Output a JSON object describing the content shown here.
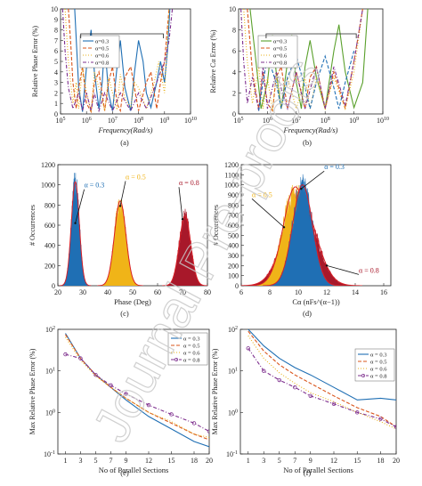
{
  "watermark": "Journal Pre-proofs",
  "colors": {
    "a03": "#1f6fb4",
    "a05": "#d9541a",
    "a06": "#e8b21a",
    "a08": "#7e2f8e",
    "red": "#b21f2d",
    "green": "#5aa02c",
    "hist_blue": "#1f6fb4",
    "hist_yellow": "#f0b418",
    "hist_red": "#a8182a",
    "fit": "#d81f26"
  },
  "chart_data": [
    {
      "id": "a",
      "type": "line",
      "caption": "(a)",
      "xlabel": "Frequency(Rad/s)",
      "ylabel": "Relative Phase Error (%)",
      "xscale": "log",
      "xlim": [
        100000,
        10000000000
      ],
      "ylim": [
        0,
        10
      ],
      "xticks": [
        100000,
        1000000,
        10000000,
        100000000,
        1000000000,
        10000000000
      ],
      "xtick_labels": [
        "10^5",
        "10^6",
        "10^7",
        "10^8",
        "10^9",
        "10^10"
      ],
      "yticks": [
        0,
        1,
        2,
        3,
        4,
        5,
        6,
        7,
        8,
        9,
        10
      ],
      "legend_position": "top-left",
      "series": [
        {
          "name": "α=0.3",
          "color_key": "a03",
          "dash": "solid",
          "x": [
            350000,
            500000,
            700000,
            1000000,
            1500000,
            2000000,
            3000000,
            4000000,
            5000000,
            7000000,
            10000000,
            15000000,
            20000000,
            30000000,
            50000000,
            70000000,
            100000000,
            150000000,
            200000000,
            300000000,
            500000000,
            700000000,
            1000000000,
            1300000000,
            1600000000
          ],
          "y": [
            10,
            2.5,
            0.2,
            4.5,
            8.0,
            4.0,
            0.5,
            3.0,
            6.8,
            2.0,
            0.3,
            4.5,
            7.0,
            2.5,
            0.3,
            4.0,
            7.0,
            5.0,
            2.0,
            0.6,
            3.0,
            5.0,
            3.0,
            6.0,
            10
          ]
        },
        {
          "name": "α=0.5",
          "color_key": "a05",
          "dash": "dashed",
          "x": [
            200000,
            250000,
            300000,
            400000,
            500000,
            700000,
            1000000,
            1500000,
            2000000,
            3000000,
            5000000,
            7000000,
            10000000,
            15000000,
            20000000,
            30000000,
            50000000,
            100000000,
            200000000,
            300000000,
            500000000,
            700000000,
            1000000000,
            1500000000
          ],
          "y": [
            10,
            6.5,
            3.0,
            0.5,
            2.5,
            4.5,
            1.0,
            0.2,
            3.0,
            4.0,
            0.3,
            3.0,
            4.5,
            1.0,
            0.3,
            3.5,
            4.5,
            0.3,
            3.0,
            4.0,
            0.5,
            3.0,
            5.0,
            10
          ]
        },
        {
          "name": "α=0.6",
          "color_key": "a06",
          "dash": "dotted",
          "x": [
            150000,
            200000,
            300000,
            400000,
            500000,
            700000,
            1000000,
            1500000,
            2000000,
            3000000,
            5000000,
            7000000,
            10000000,
            15000000,
            20000000,
            30000000,
            50000000,
            70000000,
            100000000,
            200000000,
            400000000,
            600000000,
            1000000000,
            1500000000
          ],
          "y": [
            10,
            5.0,
            1.0,
            3.0,
            0.5,
            4.5,
            2.0,
            0.2,
            4.0,
            2.5,
            0.3,
            3.5,
            2.0,
            0.4,
            3.8,
            1.5,
            0.6,
            3.0,
            2.5,
            0.5,
            3.0,
            5.0,
            2.0,
            10
          ]
        },
        {
          "name": "α=0.8",
          "color_key": "a08",
          "dash": "dashdot",
          "x": [
            120000,
            150000,
            200000,
            300000,
            500000,
            700000,
            1000000,
            1500000,
            2000000,
            3000000,
            5000000,
            10000000,
            20000000,
            50000000,
            100000000,
            200000000,
            500000000,
            1000000000,
            1500000000,
            2000000000
          ],
          "y": [
            10,
            6.0,
            2.5,
            0.5,
            2.0,
            0.3,
            2.0,
            0.3,
            2.0,
            0.3,
            2.0,
            0.3,
            2.0,
            0.3,
            2.0,
            0.5,
            3.0,
            5.0,
            7.0,
            10
          ]
        }
      ]
    },
    {
      "id": "b",
      "type": "line",
      "caption": "(b)",
      "xlabel": "Frequency(Rad/s)",
      "ylabel": "Relative Cα Error (%)",
      "xscale": "log",
      "xlim": [
        100000,
        10000000000
      ],
      "ylim": [
        0,
        10
      ],
      "xticks": [
        100000,
        1000000,
        10000000,
        100000000,
        1000000000,
        10000000000
      ],
      "xtick_labels": [
        "10^5",
        "10^6",
        "10^7",
        "10^8",
        "10^9",
        "10^10"
      ],
      "yticks": [
        0,
        2,
        4,
        6,
        8,
        10
      ],
      "legend_position": "top-left",
      "series": [
        {
          "name": "α=0.3",
          "color_key": "green",
          "dash": "solid",
          "x": [
            250000,
            400000,
            600000,
            1000000,
            1500000,
            2000000,
            3000000,
            5000000,
            7000000,
            10000000,
            15000000,
            20000000,
            30000000,
            50000000,
            100000000,
            200000000,
            300000000,
            500000000,
            1000000000,
            2000000000,
            3000000000
          ],
          "y": [
            10,
            5.0,
            0.5,
            3.0,
            7.5,
            4.0,
            0.5,
            5.0,
            7.5,
            3.0,
            0.5,
            4.5,
            7.0,
            3.5,
            0.5,
            6.0,
            8.5,
            4.0,
            0.6,
            3.0,
            10
          ]
        },
        {
          "name": "α=0.5",
          "color_key": "a05",
          "dash": "dashed",
          "x": [
            200000,
            300000,
            500000,
            700000,
            1000000,
            1500000,
            2000000,
            3000000,
            5000000,
            10000000,
            20000000,
            30000000,
            50000000,
            100000000,
            200000000,
            500000000,
            1000000000,
            2000000000
          ],
          "y": [
            10,
            4.0,
            0.5,
            4.0,
            1.0,
            0.3,
            3.5,
            4.5,
            0.5,
            4.0,
            0.5,
            3.5,
            4.5,
            0.5,
            4.0,
            0.5,
            5.0,
            10
          ]
        },
        {
          "name": "α=0.6",
          "color_key": "a06",
          "dash": "dotted",
          "x": [
            150000,
            200000,
            300000,
            500000,
            700000,
            1000000,
            1500000,
            2000000,
            3000000,
            5000000,
            10000000,
            20000000,
            30000000,
            50000000,
            100000000,
            200000000,
            500000000,
            1000000000,
            2000000000
          ],
          "y": [
            10,
            5.0,
            1.0,
            4.5,
            0.5,
            3.5,
            0.3,
            4.0,
            0.5,
            3.5,
            0.5,
            3.5,
            0.5,
            3.5,
            0.5,
            3.5,
            0.5,
            4.0,
            10
          ]
        },
        {
          "name": "α=0.8",
          "color_key": "a08",
          "dash": "dashdot",
          "x": [
            120000,
            150000,
            200000,
            300000,
            500000,
            700000,
            1000000,
            2000000,
            5000000,
            10000000,
            20000000,
            50000000,
            100000000,
            200000000,
            500000000,
            1000000000,
            2000000000
          ],
          "y": [
            10,
            5.0,
            1.0,
            3.5,
            0.3,
            4.5,
            0.5,
            4.0,
            0.5,
            4.0,
            0.5,
            4.5,
            0.5,
            4.5,
            0.8,
            5.0,
            10
          ]
        },
        {
          "name": "",
          "color_key": "a03",
          "dash": "dashed",
          "x": [
            500000,
            700000,
            1000000,
            2000000,
            3000000,
            5000000,
            10000000,
            20000000,
            30000000,
            50000000,
            100000000,
            200000000,
            300000000,
            500000000,
            1000000000
          ],
          "y": [
            0.3,
            3.0,
            5.5,
            3.0,
            0.5,
            3.5,
            5.5,
            2.5,
            0.5,
            3.0,
            5.5,
            2.5,
            0.5,
            3.0,
            6.0
          ]
        }
      ]
    },
    {
      "id": "c",
      "type": "histogram",
      "caption": "(c)",
      "xlabel": "Phase (Deg)",
      "ylabel": "# Occurrences",
      "xlim": [
        20,
        80
      ],
      "ylim": [
        0,
        1200
      ],
      "xticks": [
        20,
        30,
        40,
        50,
        60,
        70,
        80
      ],
      "yticks": [
        0,
        200,
        400,
        600,
        800,
        1000,
        1200
      ],
      "annotations": [
        {
          "text": "α = 0.3",
          "color_key": "a03",
          "at_x": 27,
          "at_y": 620
        },
        {
          "text": "α = 0.5",
          "color_key": "hist_yellow",
          "at_x": 45,
          "at_y": 790
        },
        {
          "text": "α = 0.8",
          "color_key": "hist_red",
          "at_x": 70,
          "at_y": 660
        }
      ],
      "series": [
        {
          "name": "α = 0.3",
          "color_key": "hist_blue",
          "mean": 27,
          "sd": 1.6,
          "peak": 1030
        },
        {
          "name": "α = 0.5",
          "color_key": "hist_yellow",
          "mean": 45,
          "sd": 2.3,
          "peak": 840
        },
        {
          "name": "α = 0.8",
          "color_key": "hist_red",
          "mean": 71,
          "sd": 2.3,
          "peak": 690
        }
      ]
    },
    {
      "id": "d",
      "type": "histogram",
      "caption": "(d)",
      "xlabel": "Cα (nFs^(α−1))",
      "ylabel": "# Occurrences",
      "xlim": [
        6,
        16.5
      ],
      "ylim": [
        0,
        1200
      ],
      "xticks": [
        6,
        8,
        10,
        12,
        14,
        16
      ],
      "yticks": [
        0,
        100,
        200,
        300,
        400,
        500,
        600,
        700,
        800,
        900,
        1000,
        1100,
        1200
      ],
      "annotations": [
        {
          "text": "α = 0.3",
          "color_key": "a03",
          "at_x": 10.2,
          "at_y": 960
        },
        {
          "text": "α = 0.5",
          "color_key": "hist_yellow",
          "at_x": 9.0,
          "at_y": 580
        },
        {
          "text": "α = 0.8",
          "color_key": "hist_red",
          "at_x": 12.0,
          "at_y": 200
        }
      ],
      "series": [
        {
          "name": "α = 0.8",
          "color_key": "hist_red",
          "mean": 10.1,
          "sd": 1.1,
          "peak": 880
        },
        {
          "name": "α = 0.5",
          "color_key": "hist_yellow",
          "mean": 9.8,
          "sd": 0.85,
          "peak": 980
        },
        {
          "name": "α = 0.3",
          "color_key": "hist_blue",
          "mean": 10.3,
          "sd": 0.7,
          "peak": 1000
        }
      ]
    },
    {
      "id": "e",
      "type": "line",
      "caption": "(e)",
      "xlabel": "No of Parallel Sections",
      "ylabel": "Max Relative Phase Error (%)",
      "yscale": "log",
      "xlim": [
        0,
        20
      ],
      "ylim": [
        0.1,
        100
      ],
      "xticks": [
        1,
        3,
        5,
        7,
        9,
        12,
        15,
        18,
        20
      ],
      "xtick_labels": [
        "1",
        "3",
        "5",
        "7",
        "9",
        "12",
        "15",
        "18",
        "20"
      ],
      "yticks": [
        0.1,
        1,
        10,
        100
      ],
      "ytick_labels": [
        "10^-1",
        "10^0",
        "10^1",
        "10^2"
      ],
      "legend_position": "top-right",
      "series": [
        {
          "name": "α = 0.3",
          "color_key": "a03",
          "dash": "solid",
          "marker": "none",
          "x": [
            1,
            3,
            5,
            7,
            9,
            12,
            15,
            18,
            20
          ],
          "y": [
            80,
            20,
            8,
            4,
            2,
            0.8,
            0.4,
            0.2,
            0.15
          ]
        },
        {
          "name": "α = 0.5",
          "color_key": "a05",
          "dash": "dashed",
          "marker": "none",
          "x": [
            1,
            3,
            5,
            7,
            9,
            12,
            15,
            18,
            20
          ],
          "y": [
            75,
            20,
            8,
            4,
            2.2,
            1.0,
            0.55,
            0.3,
            0.22
          ]
        },
        {
          "name": "α = 0.6",
          "color_key": "a06",
          "dash": "dotted",
          "marker": "none",
          "x": [
            1,
            3,
            5,
            7,
            9,
            12,
            15,
            18,
            20
          ],
          "y": [
            65,
            18,
            7.5,
            4,
            2.2,
            1.0,
            0.6,
            0.3,
            0.25
          ]
        },
        {
          "name": "α = 0.8",
          "color_key": "a08",
          "dash": "dashdot",
          "marker": "circle",
          "x": [
            1,
            3,
            5,
            7,
            9,
            12,
            15,
            18,
            20
          ],
          "y": [
            25,
            20,
            8,
            4.5,
            2.8,
            1.5,
            0.9,
            0.55,
            0.35
          ]
        }
      ]
    },
    {
      "id": "f",
      "type": "line",
      "caption": "(f)",
      "xlabel": "No of Parallel Sections",
      "ylabel": "Max Relative Phase Error (%)",
      "yscale": "log",
      "xlim": [
        0,
        20
      ],
      "ylim": [
        0.1,
        100
      ],
      "xticks": [
        1,
        3,
        5,
        7,
        9,
        12,
        15,
        18,
        20
      ],
      "xtick_labels": [
        "1",
        "3",
        "5",
        "7",
        "9",
        "12",
        "15",
        "18",
        "20"
      ],
      "yticks": [
        0.1,
        1,
        10,
        100
      ],
      "ytick_labels": [
        "10^-1",
        "10^0",
        "10^1",
        "10^2"
      ],
      "legend_position": "right",
      "series": [
        {
          "name": "α = 0.3",
          "color_key": "a03",
          "dash": "solid",
          "marker": "none",
          "x": [
            1,
            3,
            5,
            7,
            9,
            12,
            15,
            18,
            20
          ],
          "y": [
            100,
            40,
            20,
            12,
            8,
            4,
            2,
            2.2,
            2.0
          ]
        },
        {
          "name": "α = 0.5",
          "color_key": "a05",
          "dash": "dashed",
          "marker": "none",
          "x": [
            1,
            3,
            5,
            7,
            9,
            12,
            15,
            18,
            20
          ],
          "y": [
            90,
            30,
            14,
            8,
            5,
            2.5,
            1.3,
            0.8,
            0.45
          ]
        },
        {
          "name": "α = 0.6",
          "color_key": "a06",
          "dash": "dotted",
          "marker": "none",
          "x": [
            1,
            3,
            5,
            7,
            9,
            12,
            15,
            18,
            20
          ],
          "y": [
            70,
            20,
            9,
            5,
            3,
            1.8,
            1.0,
            0.6,
            0.4
          ]
        },
        {
          "name": "α = 0.8",
          "color_key": "a08",
          "dash": "dashdot",
          "marker": "circle",
          "x": [
            1,
            3,
            5,
            7,
            9,
            12,
            15,
            18,
            20
          ],
          "y": [
            35,
            10,
            6,
            4,
            2.5,
            1.6,
            1.0,
            0.7,
            0.45
          ]
        }
      ]
    }
  ]
}
